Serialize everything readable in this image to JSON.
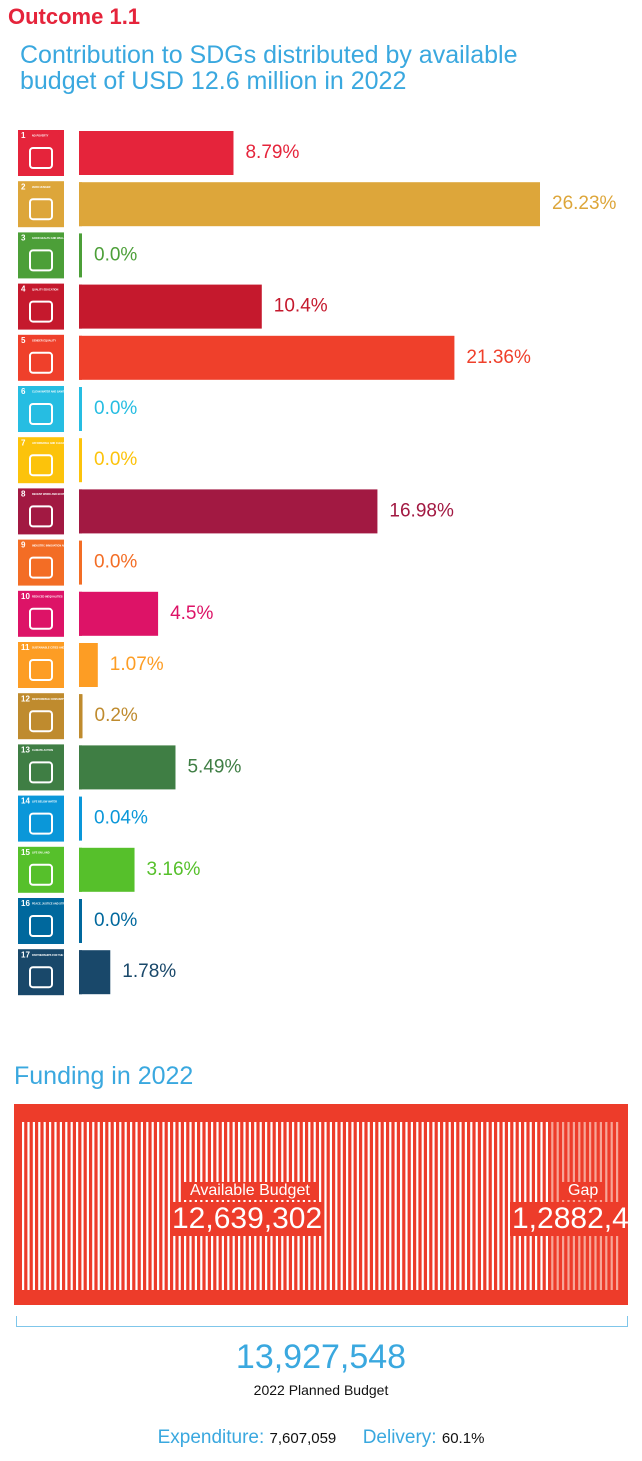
{
  "heading": "Outcome 1.1",
  "chart_data": {
    "type": "barh",
    "title": "Contribution to SDGs distributed by available budget of USD 12.6 million in 2022",
    "category_numbers": [
      1,
      2,
      3,
      4,
      5,
      6,
      7,
      8,
      9,
      10,
      11,
      12,
      13,
      14,
      15,
      16,
      17
    ],
    "categories": [
      "NO POVERTY",
      "ZERO HUNGER",
      "GOOD HEALTH AND WELL-BEING",
      "QUALITY EDUCATION",
      "GENDER EQUALITY",
      "CLEAN WATER AND SANITATION",
      "AFFORDABLE AND CLEAN ENERGY",
      "DECENT WORK AND ECONOMIC GROWTH",
      "INDUSTRY, INNOVATION AND INFRASTRUCTURE",
      "REDUCED INEQUALITIES",
      "SUSTAINABLE CITIES AND COMMUNITIES",
      "RESPONSIBLE CONSUMPTION AND PRODUCTION",
      "CLIMATE ACTION",
      "LIFE BELOW WATER",
      "LIFE ON LAND",
      "PEACE, JUSTICE AND STRONG INSTITUTIONS",
      "PARTNERSHIPS FOR THE GOALS"
    ],
    "values": [
      8.79,
      26.23,
      0,
      10.4,
      21.36,
      0,
      0,
      16.98,
      0,
      4.5,
      1.07,
      0.2,
      5.49,
      0.04,
      3.16,
      0,
      1.78
    ],
    "value_labels": [
      "8.79%",
      "26.23%",
      "0.0%",
      "10.4%",
      "21.36%",
      "0.0%",
      "0.0%",
      "16.98%",
      "0.0%",
      "4.5%",
      "1.07%",
      "0.2%",
      "5.49%",
      "0.04%",
      "3.16%",
      "0.0%",
      "1.78%"
    ],
    "colors": [
      "#e5243b",
      "#dda63a",
      "#4c9f38",
      "#c5192d",
      "#ef402b",
      "#26bde2",
      "#fcc30b",
      "#a21942",
      "#f36d25",
      "#dd1367",
      "#fd9d24",
      "#bf8b2e",
      "#3f7e44",
      "#0a97d9",
      "#56c02b",
      "#00689d",
      "#19486a"
    ]
  },
  "funding": {
    "title": "Funding in 2022",
    "available_label": "Available Budget",
    "available": "12,639,302",
    "gap_label": "Gap",
    "gap": "1,2882,4",
    "planned": "13,927,548",
    "planned_label": "2022 Planned Budget",
    "expenditure_label": "Expenditure:",
    "expenditure": "7,607,059",
    "delivery_label": "Delivery:",
    "delivery": "60.1%"
  }
}
